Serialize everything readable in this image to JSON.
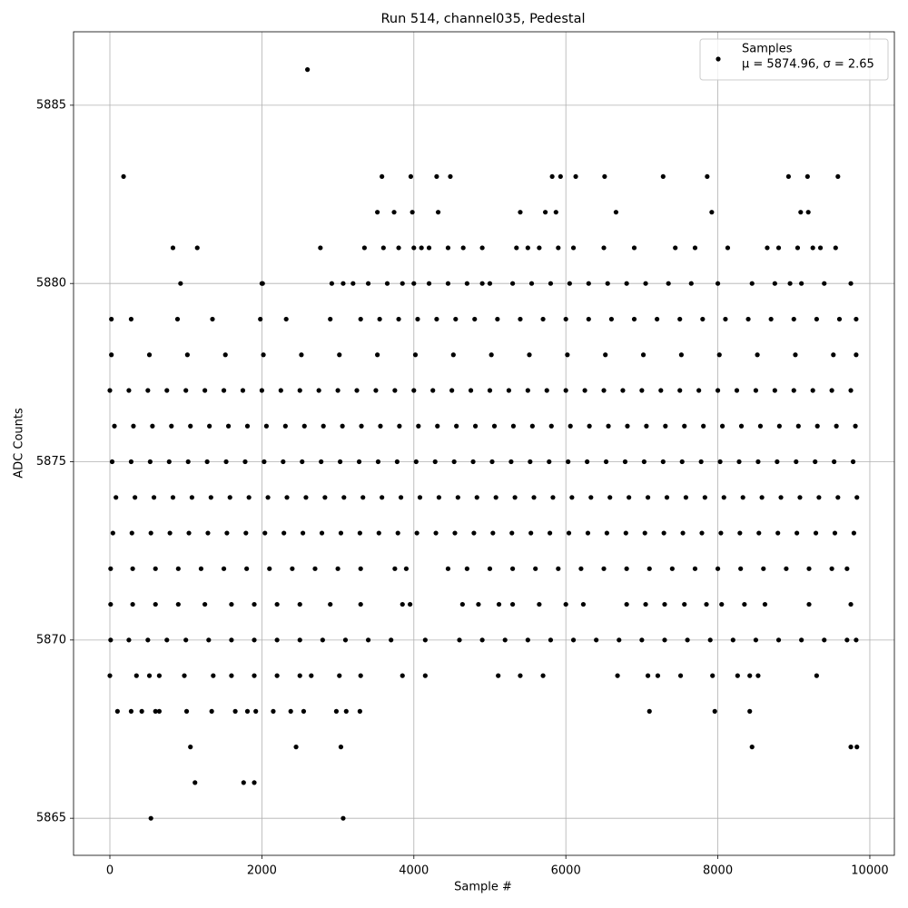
{
  "chart_data": {
    "type": "scatter",
    "title": "Run 514, channel035, Pedestal",
    "x_label": "Sample #",
    "y_label": "ADC Counts",
    "stats_label": "μ = 5874.96, σ = 2.65",
    "legend_position": "upper right",
    "grid": true,
    "xlim": [
      -478,
      10323
    ],
    "ylim": [
      5863.96,
      5887.06
    ],
    "xticks": [
      0,
      2000,
      4000,
      6000,
      8000,
      10000
    ],
    "yticks": [
      5865,
      5870,
      5875,
      5880,
      5885
    ],
    "series": [
      {
        "name": "Samples",
        "color": "#000000",
        "x": [
          2600,
          180,
          540,
          3070,
          1120,
          1760,
          1900,
          1060,
          8450,
          9750,
          9830,
          2450,
          3040,
          7100,
          7960,
          8420,
          930,
          2000,
          3580,
          3960,
          4300,
          4480,
          5820,
          5930,
          6130,
          6510,
          7280,
          7860,
          8930,
          9180,
          9580,
          3520,
          3740,
          3980,
          4320,
          5400,
          5730,
          5870,
          6660,
          7920,
          9090,
          9190,
          830,
          1150,
          2770,
          4100,
          5500,
          7440,
          8130,
          9350,
          0,
          250,
          500,
          750,
          1000,
          1250,
          1500,
          1750,
          2000,
          2250,
          2500,
          2750,
          3000,
          3250,
          3500,
          3750,
          4000,
          4250,
          4500,
          4750,
          5000,
          5250,
          5500,
          5750,
          6000,
          6250,
          6500,
          6750,
          7000,
          7250,
          7500,
          7750,
          8000,
          8250,
          8500,
          8750,
          9000,
          9250,
          9500,
          9750,
          60,
          310,
          560,
          810,
          1060,
          1310,
          1560,
          1810,
          2060,
          2310,
          2560,
          2810,
          3060,
          3310,
          3560,
          3810,
          4060,
          4310,
          4560,
          4810,
          5060,
          5310,
          5560,
          5810,
          6060,
          6310,
          6560,
          6810,
          7060,
          7310,
          7560,
          7810,
          8060,
          8310,
          8560,
          8810,
          9060,
          9310,
          9560,
          9810,
          30,
          280,
          530,
          780,
          1030,
          1280,
          1530,
          1780,
          2030,
          2280,
          2530,
          2780,
          3030,
          3280,
          3530,
          3780,
          4030,
          4280,
          4530,
          4780,
          5030,
          5280,
          5530,
          5780,
          6030,
          6280,
          6530,
          6780,
          7030,
          7280,
          7530,
          7780,
          8030,
          8280,
          8530,
          8780,
          9030,
          9280,
          9530,
          9780,
          80,
          330,
          580,
          830,
          1080,
          1330,
          1580,
          1830,
          2080,
          2330,
          2580,
          2830,
          3080,
          3330,
          3580,
          3830,
          4080,
          4330,
          4580,
          4830,
          5080,
          5330,
          5580,
          5830,
          6080,
          6330,
          6580,
          6830,
          7080,
          7330,
          7580,
          7830,
          8080,
          8330,
          8580,
          8830,
          9080,
          9330,
          9580,
          9830,
          40,
          290,
          540,
          790,
          1040,
          1290,
          1540,
          1790,
          2040,
          2290,
          2540,
          2790,
          3040,
          3290,
          3540,
          3790,
          4040,
          4290,
          4540,
          4790,
          5040,
          5290,
          5540,
          5790,
          6040,
          6290,
          6540,
          6790,
          7040,
          7290,
          7540,
          7790,
          8040,
          8290,
          8540,
          8790,
          9040,
          9290,
          9540,
          9790,
          20,
          520,
          1020,
          1520,
          2020,
          2520,
          3020,
          3520,
          4020,
          4520,
          5020,
          5520,
          6020,
          6520,
          7020,
          7520,
          8020,
          8520,
          9020,
          9520,
          9820,
          20,
          280,
          890,
          1350,
          1980,
          2320,
          2900,
          3300,
          3550,
          3800,
          4050,
          4300,
          4550,
          4800,
          5100,
          5400,
          5700,
          6000,
          6300,
          6600,
          6900,
          7200,
          7500,
          7800,
          8100,
          8400,
          8700,
          9000,
          9300,
          9600,
          9820,
          10,
          300,
          600,
          900,
          1200,
          1500,
          1800,
          2100,
          2400,
          2700,
          3000,
          3300,
          3750,
          3900,
          4450,
          4700,
          5000,
          5300,
          5600,
          5900,
          6200,
          6500,
          6800,
          7100,
          7400,
          7700,
          8000,
          8300,
          8600,
          8900,
          9200,
          9500,
          9700,
          10,
          250,
          500,
          750,
          1000,
          1300,
          1600,
          1900,
          2200,
          2500,
          2800,
          3100,
          3400,
          3700,
          4150,
          4600,
          4900,
          5200,
          5500,
          5800,
          6100,
          6400,
          6700,
          7000,
          7300,
          7600,
          7900,
          8200,
          8500,
          8800,
          9100,
          9400,
          9700,
          9820,
          10,
          300,
          600,
          900,
          1250,
          1600,
          1900,
          2200,
          2500,
          2900,
          3300,
          3850,
          3950,
          4640,
          4850,
          5120,
          5300,
          5650,
          6000,
          6230,
          6800,
          7050,
          7300,
          7560,
          7850,
          8050,
          8350,
          8620,
          9200,
          9750,
          0,
          350,
          520,
          650,
          980,
          1360,
          1600,
          1900,
          2200,
          2500,
          2650,
          3020,
          3300,
          3850,
          4150,
          5110,
          5400,
          5700,
          6680,
          7080,
          7210,
          7510,
          7930,
          8260,
          8420,
          8530,
          9300,
          100,
          280,
          420,
          600,
          650,
          1010,
          1340,
          1650,
          1810,
          1920,
          2150,
          2380,
          2550,
          2980,
          3110,
          3290,
          2010,
          2920,
          3070,
          3200,
          3400,
          3650,
          3850,
          4000,
          4200,
          4450,
          4700,
          4900,
          5000,
          5300,
          5550,
          5800,
          6050,
          6300,
          6550,
          6800,
          7050,
          7350,
          7650,
          8000,
          8450,
          8750,
          8950,
          9100,
          9400,
          9750,
          3350,
          3600,
          3800,
          4000,
          4200,
          4450,
          4650,
          4900,
          5350,
          5650,
          5900,
          6100,
          6500,
          6900,
          7700,
          8650,
          8800,
          9050,
          9250,
          9550
        ],
        "values": [
          5886,
          5883,
          5865,
          5865,
          5866,
          5866,
          5866,
          5867,
          5867,
          5867,
          5867,
          5867,
          5867,
          5868,
          5868,
          5868,
          5880,
          5880,
          5883,
          5883,
          5883,
          5883,
          5883,
          5883,
          5883,
          5883,
          5883,
          5883,
          5883,
          5883,
          5883,
          5882,
          5882,
          5882,
          5882,
          5882,
          5882,
          5882,
          5882,
          5882,
          5882,
          5882,
          5881,
          5881,
          5881,
          5881,
          5881,
          5881,
          5881,
          5881,
          5877,
          5877,
          5877,
          5877,
          5877,
          5877,
          5877,
          5877,
          5877,
          5877,
          5877,
          5877,
          5877,
          5877,
          5877,
          5877,
          5877,
          5877,
          5877,
          5877,
          5877,
          5877,
          5877,
          5877,
          5877,
          5877,
          5877,
          5877,
          5877,
          5877,
          5877,
          5877,
          5877,
          5877,
          5877,
          5877,
          5877,
          5877,
          5877,
          5877,
          5876,
          5876,
          5876,
          5876,
          5876,
          5876,
          5876,
          5876,
          5876,
          5876,
          5876,
          5876,
          5876,
          5876,
          5876,
          5876,
          5876,
          5876,
          5876,
          5876,
          5876,
          5876,
          5876,
          5876,
          5876,
          5876,
          5876,
          5876,
          5876,
          5876,
          5876,
          5876,
          5876,
          5876,
          5876,
          5876,
          5876,
          5876,
          5876,
          5876,
          5875,
          5875,
          5875,
          5875,
          5875,
          5875,
          5875,
          5875,
          5875,
          5875,
          5875,
          5875,
          5875,
          5875,
          5875,
          5875,
          5875,
          5875,
          5875,
          5875,
          5875,
          5875,
          5875,
          5875,
          5875,
          5875,
          5875,
          5875,
          5875,
          5875,
          5875,
          5875,
          5875,
          5875,
          5875,
          5875,
          5875,
          5875,
          5875,
          5875,
          5874,
          5874,
          5874,
          5874,
          5874,
          5874,
          5874,
          5874,
          5874,
          5874,
          5874,
          5874,
          5874,
          5874,
          5874,
          5874,
          5874,
          5874,
          5874,
          5874,
          5874,
          5874,
          5874,
          5874,
          5874,
          5874,
          5874,
          5874,
          5874,
          5874,
          5874,
          5874,
          5874,
          5874,
          5874,
          5874,
          5874,
          5874,
          5874,
          5874,
          5873,
          5873,
          5873,
          5873,
          5873,
          5873,
          5873,
          5873,
          5873,
          5873,
          5873,
          5873,
          5873,
          5873,
          5873,
          5873,
          5873,
          5873,
          5873,
          5873,
          5873,
          5873,
          5873,
          5873,
          5873,
          5873,
          5873,
          5873,
          5873,
          5873,
          5873,
          5873,
          5873,
          5873,
          5873,
          5873,
          5873,
          5873,
          5873,
          5873,
          5878,
          5878,
          5878,
          5878,
          5878,
          5878,
          5878,
          5878,
          5878,
          5878,
          5878,
          5878,
          5878,
          5878,
          5878,
          5878,
          5878,
          5878,
          5878,
          5878,
          5878,
          5879,
          5879,
          5879,
          5879,
          5879,
          5879,
          5879,
          5879,
          5879,
          5879,
          5879,
          5879,
          5879,
          5879,
          5879,
          5879,
          5879,
          5879,
          5879,
          5879,
          5879,
          5879,
          5879,
          5879,
          5879,
          5879,
          5879,
          5879,
          5879,
          5879,
          5879,
          5872,
          5872,
          5872,
          5872,
          5872,
          5872,
          5872,
          5872,
          5872,
          5872,
          5872,
          5872,
          5872,
          5872,
          5872,
          5872,
          5872,
          5872,
          5872,
          5872,
          5872,
          5872,
          5872,
          5872,
          5872,
          5872,
          5872,
          5872,
          5872,
          5872,
          5872,
          5872,
          5872,
          5870,
          5870,
          5870,
          5870,
          5870,
          5870,
          5870,
          5870,
          5870,
          5870,
          5870,
          5870,
          5870,
          5870,
          5870,
          5870,
          5870,
          5870,
          5870,
          5870,
          5870,
          5870,
          5870,
          5870,
          5870,
          5870,
          5870,
          5870,
          5870,
          5870,
          5870,
          5870,
          5870,
          5870,
          5871,
          5871,
          5871,
          5871,
          5871,
          5871,
          5871,
          5871,
          5871,
          5871,
          5871,
          5871,
          5871,
          5871,
          5871,
          5871,
          5871,
          5871,
          5871,
          5871,
          5871,
          5871,
          5871,
          5871,
          5871,
          5871,
          5871,
          5871,
          5871,
          5871,
          5869,
          5869,
          5869,
          5869,
          5869,
          5869,
          5869,
          5869,
          5869,
          5869,
          5869,
          5869,
          5869,
          5869,
          5869,
          5869,
          5869,
          5869,
          5869,
          5869,
          5869,
          5869,
          5869,
          5869,
          5869,
          5869,
          5869,
          5868,
          5868,
          5868,
          5868,
          5868,
          5868,
          5868,
          5868,
          5868,
          5868,
          5868,
          5868,
          5868,
          5868,
          5868,
          5868,
          5880,
          5880,
          5880,
          5880,
          5880,
          5880,
          5880,
          5880,
          5880,
          5880,
          5880,
          5880,
          5880,
          5880,
          5880,
          5880,
          5880,
          5880,
          5880,
          5880,
          5880,
          5880,
          5880,
          5880,
          5880,
          5880,
          5880,
          5880,
          5880,
          5880,
          5881,
          5881,
          5881,
          5881,
          5881,
          5881,
          5881,
          5881,
          5881,
          5881,
          5881,
          5881,
          5881,
          5881,
          5881,
          5881,
          5881,
          5881,
          5881,
          5881
        ]
      }
    ]
  }
}
